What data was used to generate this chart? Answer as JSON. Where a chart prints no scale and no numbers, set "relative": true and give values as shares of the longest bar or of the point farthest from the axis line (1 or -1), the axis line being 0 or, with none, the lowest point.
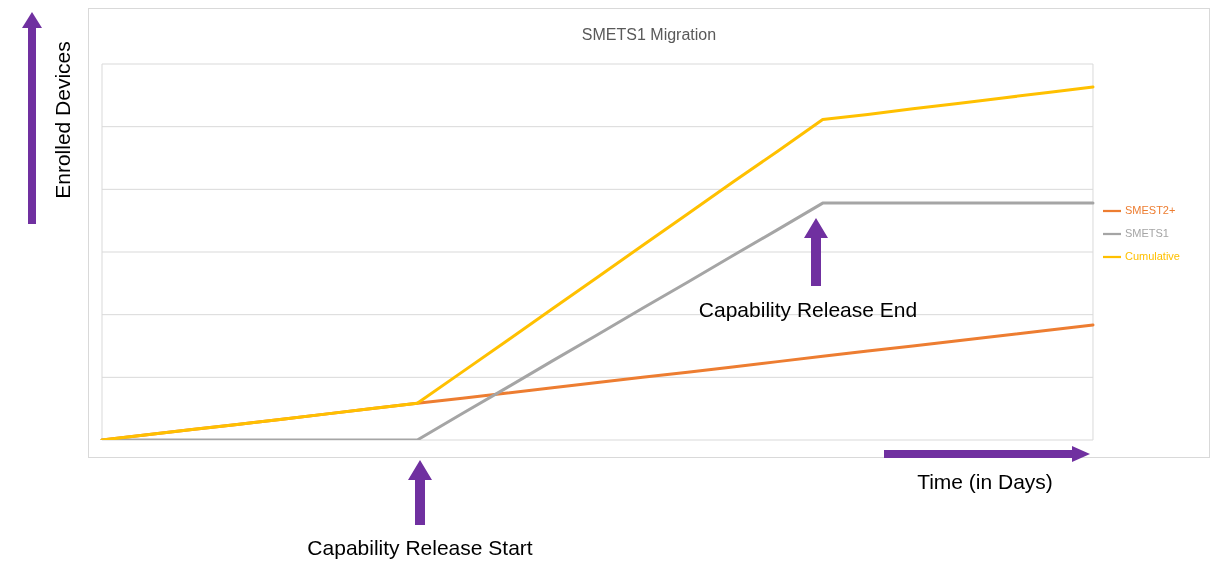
{
  "chart_data": {
    "type": "line",
    "title": "SMETS1 Migration",
    "xlabel": "Time (in Days)",
    "ylabel": "Enrolled Devices",
    "relative": true,
    "grid": true,
    "legend": "right",
    "marker": "none",
    "line_style": "solid",
    "categories": [
      null,
      null,
      null,
      null,
      null,
      null,
      null,
      null,
      null,
      null,
      null,
      null,
      null,
      null,
      null,
      null,
      null,
      null,
      null,
      null,
      null,
      null,
      null
    ],
    "series": [
      {
        "name": "SMEST2+",
        "color": "#ed7d31",
        "values": [
          0,
          0.015,
          0.03,
          0.044,
          0.059,
          0.074,
          0.089,
          0.104,
          0.118,
          0.133,
          0.148,
          0.163,
          0.178,
          0.192,
          0.207,
          0.222,
          0.237,
          0.252,
          0.266,
          0.281,
          0.296,
          0.311,
          0.326
        ]
      },
      {
        "name": "SMETS1",
        "color": "#a5a5a5",
        "values": [
          0,
          0,
          0,
          0,
          0,
          0,
          0,
          0,
          0.075,
          0.149,
          0.224,
          0.298,
          0.373,
          0.447,
          0.522,
          0.596,
          0.671,
          0.671,
          0.671,
          0.671,
          0.671,
          0.671,
          0.671
        ]
      },
      {
        "name": "Cumulative",
        "color": "#ffc000",
        "values": [
          0,
          0.015,
          0.03,
          0.044,
          0.059,
          0.074,
          0.089,
          0.104,
          0.193,
          0.282,
          0.372,
          0.461,
          0.551,
          0.64,
          0.73,
          0.818,
          0.908,
          0.922,
          0.938,
          0.953,
          0.969,
          0.984,
          1
        ]
      }
    ],
    "annotations": [
      "Capability Release Start",
      "Capability Release End"
    ]
  }
}
